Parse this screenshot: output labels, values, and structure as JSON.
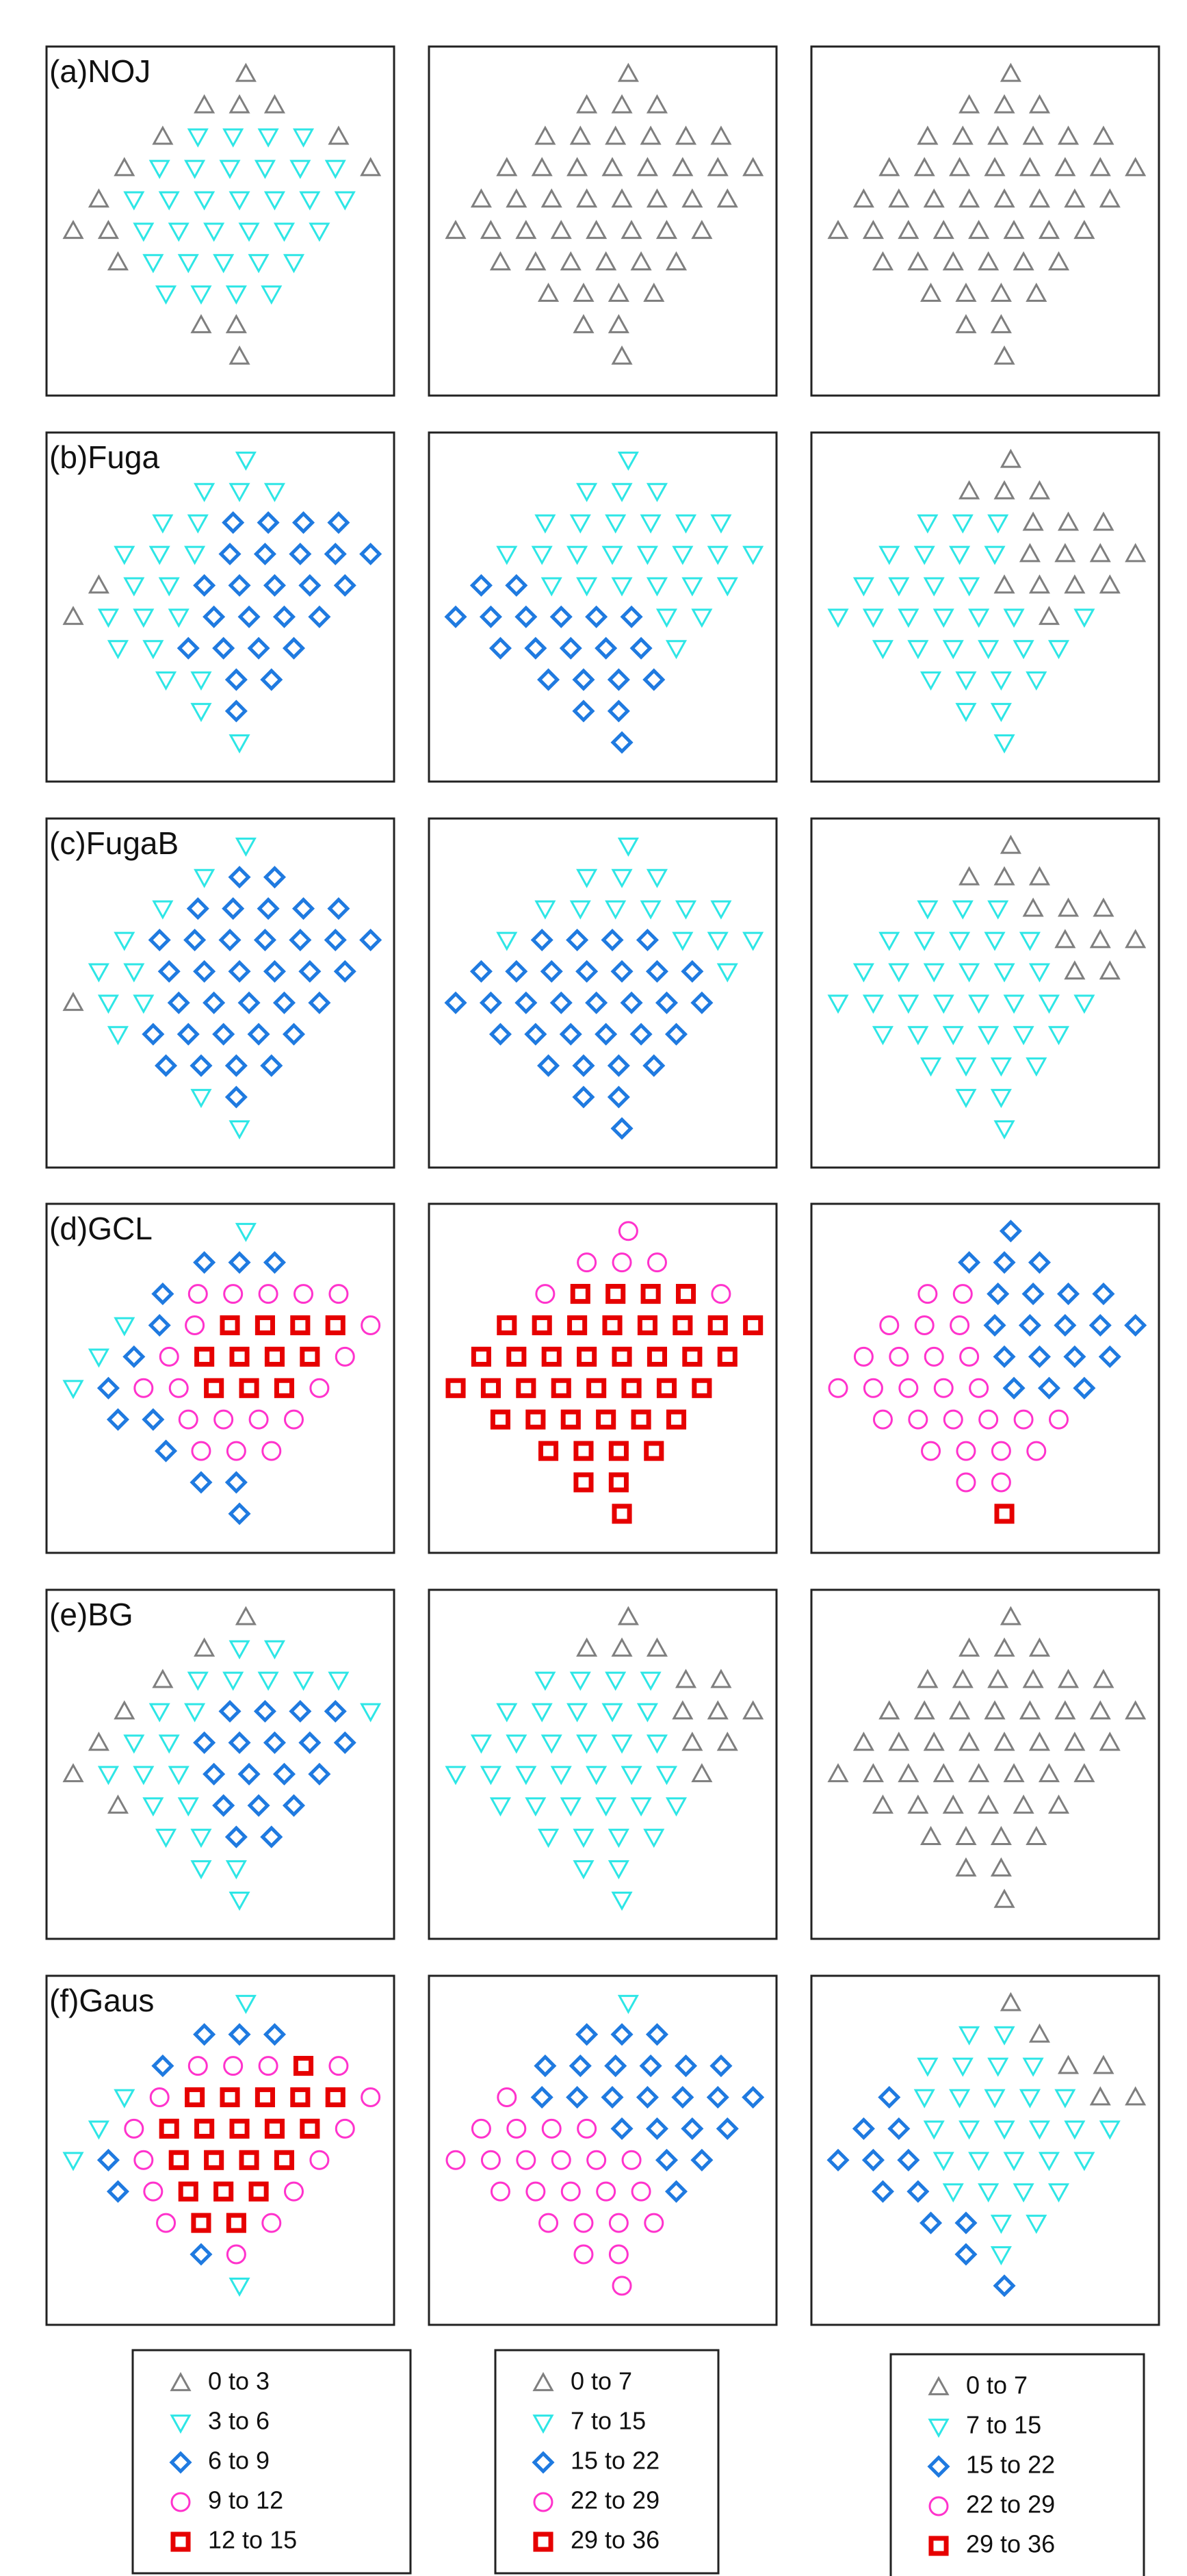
{
  "chart_data": {
    "type": "layout-map",
    "turbines": {
      "x": [
        58,
        45,
        56,
        67,
        32,
        43,
        54,
        65,
        76,
        87,
        20,
        31,
        42,
        53,
        64,
        75,
        86,
        97,
        12,
        23,
        34,
        45,
        56,
        67,
        78,
        89,
        4,
        15,
        26,
        37,
        48,
        59,
        70,
        81,
        18,
        29,
        40,
        51,
        62,
        73,
        33,
        44,
        55,
        66,
        44,
        55,
        56
      ],
      "y": [
        2,
        12,
        12,
        12,
        22,
        22,
        22,
        22,
        22,
        22,
        32,
        32,
        32,
        32,
        32,
        32,
        32,
        32,
        42,
        42,
        42,
        42,
        42,
        42,
        42,
        42,
        52,
        52,
        52,
        52,
        52,
        52,
        52,
        52,
        62,
        62,
        62,
        62,
        62,
        62,
        72,
        72,
        72,
        72,
        82,
        82,
        92
      ]
    },
    "markers": [
      {
        "shape": "triangle-up",
        "color": "#7f7f7f"
      },
      {
        "shape": "triangle-down",
        "color": "#2ee6e6"
      },
      {
        "shape": "diamond",
        "color": "#1f7ae0"
      },
      {
        "shape": "circle",
        "color": "#ff33cc"
      },
      {
        "shape": "square",
        "color": "#e60000"
      }
    ],
    "legends": [
      [
        "0 to 3",
        "3 to 6",
        "6 to 9",
        "9 to 12",
        "12 to 15"
      ],
      [
        "0 to 7",
        "7 to 15",
        "15 to 22",
        "22 to 29",
        "29 to 36"
      ],
      [
        "0 to 7",
        "7 to 15",
        "15 to 22",
        "22 to 29",
        "29 to 36"
      ]
    ],
    "rows": [
      {
        "label": "(a)NOJ",
        "panels": [
          [
            0,
            0,
            0,
            0,
            0,
            1,
            1,
            1,
            1,
            0,
            0,
            1,
            1,
            1,
            1,
            1,
            1,
            0,
            0,
            1,
            1,
            1,
            1,
            1,
            1,
            1,
            0,
            0,
            1,
            1,
            1,
            1,
            1,
            1,
            0,
            1,
            1,
            1,
            1,
            1,
            1,
            1,
            1,
            1,
            0,
            0,
            0
          ],
          [
            0,
            0,
            0,
            0,
            0,
            0,
            0,
            0,
            0,
            0,
            0,
            0,
            0,
            0,
            0,
            0,
            0,
            0,
            0,
            0,
            0,
            0,
            0,
            0,
            0,
            0,
            0,
            0,
            0,
            0,
            0,
            0,
            0,
            0,
            0,
            0,
            0,
            0,
            0,
            0,
            0,
            0,
            0,
            0,
            0,
            0,
            0
          ],
          [
            0,
            0,
            0,
            0,
            0,
            0,
            0,
            0,
            0,
            0,
            0,
            0,
            0,
            0,
            0,
            0,
            0,
            0,
            0,
            0,
            0,
            0,
            0,
            0,
            0,
            0,
            0,
            0,
            0,
            0,
            0,
            0,
            0,
            0,
            0,
            0,
            0,
            0,
            0,
            0,
            0,
            0,
            0,
            0,
            0,
            0,
            0
          ]
        ]
      },
      {
        "label": "(b)Fuga",
        "panels": [
          [
            1,
            1,
            1,
            1,
            1,
            1,
            2,
            2,
            2,
            2,
            1,
            1,
            1,
            2,
            2,
            2,
            2,
            2,
            0,
            1,
            1,
            2,
            2,
            2,
            2,
            2,
            0,
            1,
            1,
            1,
            2,
            2,
            2,
            2,
            1,
            1,
            2,
            2,
            2,
            2,
            1,
            1,
            2,
            2,
            1,
            2,
            1
          ],
          [
            1,
            1,
            1,
            1,
            1,
            1,
            1,
            1,
            1,
            1,
            1,
            1,
            1,
            1,
            1,
            1,
            1,
            1,
            2,
            2,
            1,
            1,
            1,
            1,
            1,
            1,
            2,
            2,
            2,
            2,
            2,
            2,
            1,
            1,
            2,
            2,
            2,
            2,
            2,
            1,
            2,
            2,
            2,
            2,
            2,
            2,
            2
          ],
          [
            0,
            0,
            0,
            0,
            1,
            1,
            1,
            0,
            0,
            0,
            1,
            1,
            1,
            1,
            0,
            0,
            0,
            0,
            1,
            1,
            1,
            1,
            0,
            0,
            0,
            0,
            1,
            1,
            1,
            1,
            1,
            1,
            0,
            1,
            1,
            1,
            1,
            1,
            1,
            1,
            1,
            1,
            1,
            1,
            1,
            1,
            1
          ]
        ]
      },
      {
        "label": "(c)FugaB",
        "panels": [
          [
            1,
            1,
            2,
            2,
            1,
            2,
            2,
            2,
            2,
            2,
            1,
            2,
            2,
            2,
            2,
            2,
            2,
            2,
            1,
            1,
            2,
            2,
            2,
            2,
            2,
            2,
            0,
            1,
            1,
            2,
            2,
            2,
            2,
            2,
            1,
            2,
            2,
            2,
            2,
            2,
            2,
            2,
            2,
            2,
            1,
            2,
            1
          ],
          [
            1,
            1,
            1,
            1,
            1,
            1,
            1,
            1,
            1,
            1,
            1,
            2,
            2,
            2,
            2,
            1,
            1,
            1,
            2,
            2,
            2,
            2,
            2,
            2,
            2,
            1,
            2,
            2,
            2,
            2,
            2,
            2,
            2,
            2,
            2,
            2,
            2,
            2,
            2,
            2,
            2,
            2,
            2,
            2,
            2,
            2,
            2
          ],
          [
            0,
            0,
            0,
            0,
            1,
            1,
            1,
            0,
            0,
            0,
            1,
            1,
            1,
            1,
            1,
            0,
            0,
            0,
            1,
            1,
            1,
            1,
            1,
            1,
            0,
            0,
            1,
            1,
            1,
            1,
            1,
            1,
            1,
            1,
            1,
            1,
            1,
            1,
            1,
            1,
            1,
            1,
            1,
            1,
            1,
            1,
            1
          ]
        ]
      },
      {
        "label": "(d)GCL",
        "panels": [
          [
            1,
            2,
            2,
            2,
            2,
            3,
            3,
            3,
            3,
            3,
            1,
            2,
            3,
            4,
            4,
            4,
            4,
            3,
            1,
            2,
            3,
            4,
            4,
            4,
            4,
            3,
            1,
            2,
            3,
            3,
            4,
            4,
            4,
            3,
            2,
            2,
            3,
            3,
            3,
            3,
            2,
            3,
            3,
            3,
            2,
            2,
            2
          ],
          [
            3,
            3,
            3,
            3,
            3,
            4,
            4,
            4,
            4,
            3,
            4,
            4,
            4,
            4,
            4,
            4,
            4,
            4,
            4,
            4,
            4,
            4,
            4,
            4,
            4,
            4,
            4,
            4,
            4,
            4,
            4,
            4,
            4,
            4,
            4,
            4,
            4,
            4,
            4,
            4,
            4,
            4,
            4,
            4,
            4,
            4,
            4
          ],
          [
            2,
            2,
            2,
            2,
            3,
            3,
            2,
            2,
            2,
            2,
            3,
            3,
            3,
            2,
            2,
            2,
            2,
            2,
            3,
            3,
            3,
            3,
            2,
            2,
            2,
            2,
            3,
            3,
            3,
            3,
            3,
            2,
            2,
            2,
            3,
            3,
            3,
            3,
            3,
            3,
            3,
            3,
            3,
            3,
            3,
            3,
            4
          ]
        ]
      },
      {
        "label": "(e)BG",
        "panels": [
          [
            0,
            0,
            1,
            1,
            0,
            1,
            1,
            1,
            1,
            1,
            0,
            1,
            1,
            2,
            2,
            2,
            2,
            1,
            0,
            1,
            1,
            2,
            2,
            2,
            2,
            2,
            0,
            1,
            1,
            1,
            2,
            2,
            2,
            2,
            0,
            1,
            1,
            2,
            2,
            2,
            1,
            1,
            2,
            2,
            1,
            1,
            1
          ],
          [
            0,
            0,
            0,
            0,
            1,
            1,
            1,
            1,
            0,
            0,
            1,
            1,
            1,
            1,
            1,
            0,
            0,
            0,
            1,
            1,
            1,
            1,
            1,
            1,
            0,
            0,
            1,
            1,
            1,
            1,
            1,
            1,
            1,
            0,
            1,
            1,
            1,
            1,
            1,
            1,
            1,
            1,
            1,
            1,
            1,
            1,
            1
          ],
          [
            0,
            0,
            0,
            0,
            0,
            0,
            0,
            0,
            0,
            0,
            0,
            0,
            0,
            0,
            0,
            0,
            0,
            0,
            0,
            0,
            0,
            0,
            0,
            0,
            0,
            0,
            0,
            0,
            0,
            0,
            0,
            0,
            0,
            0,
            0,
            0,
            0,
            0,
            0,
            0,
            0,
            0,
            0,
            0,
            0,
            0,
            0
          ]
        ]
      },
      {
        "label": "(f)Gaus",
        "panels": [
          [
            1,
            2,
            2,
            2,
            2,
            3,
            3,
            3,
            4,
            3,
            1,
            3,
            4,
            4,
            4,
            4,
            4,
            3,
            1,
            3,
            4,
            4,
            4,
            4,
            4,
            3,
            1,
            2,
            3,
            4,
            4,
            4,
            4,
            3,
            2,
            3,
            4,
            4,
            4,
            3,
            3,
            4,
            4,
            3,
            2,
            3,
            1
          ],
          [
            1,
            2,
            2,
            2,
            2,
            2,
            2,
            2,
            2,
            2,
            3,
            2,
            2,
            2,
            2,
            2,
            2,
            2,
            3,
            3,
            3,
            3,
            2,
            2,
            2,
            2,
            3,
            3,
            3,
            3,
            3,
            3,
            2,
            2,
            3,
            3,
            3,
            3,
            3,
            2,
            3,
            3,
            3,
            3,
            3,
            3,
            3
          ],
          [
            0,
            1,
            1,
            0,
            1,
            1,
            1,
            1,
            0,
            0,
            2,
            1,
            1,
            1,
            1,
            1,
            0,
            0,
            2,
            2,
            1,
            1,
            1,
            1,
            1,
            1,
            2,
            2,
            2,
            1,
            1,
            1,
            1,
            1,
            2,
            2,
            1,
            1,
            1,
            1,
            2,
            2,
            1,
            1,
            2,
            1,
            2
          ]
        ]
      }
    ]
  }
}
